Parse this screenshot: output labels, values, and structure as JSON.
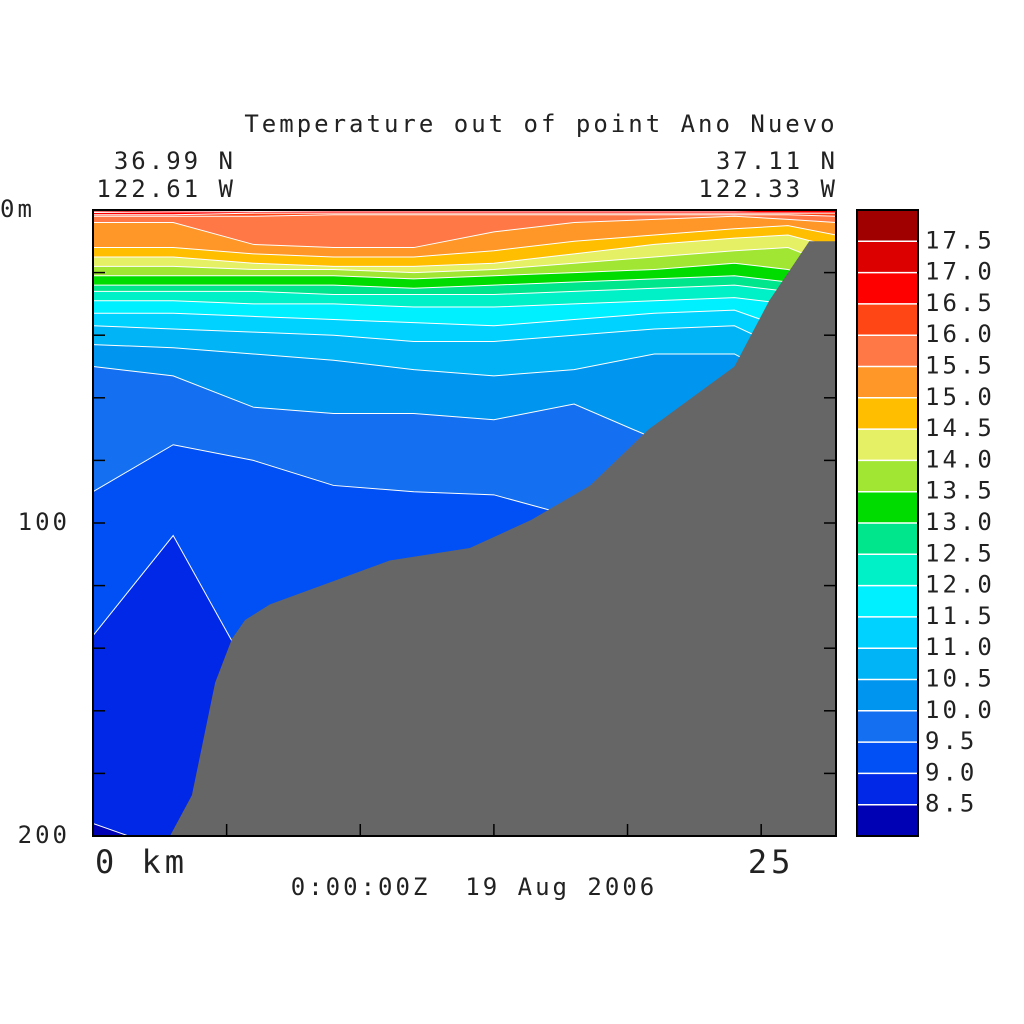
{
  "chart_data": {
    "type": "contour",
    "title": "Temperature out of point Ano Nuevo",
    "left_lat": "36.99 N",
    "left_lon": "122.61 W",
    "right_lat": "37.11 N",
    "right_lon": "122.33 W",
    "footer": "0:00:00Z  19 Aug 2006",
    "xlim": [
      0,
      27.8
    ],
    "xticks": [
      {
        "value": 0,
        "label": "0 km"
      },
      {
        "value": 5,
        "label": null
      },
      {
        "value": 10,
        "label": null
      },
      {
        "value": 15,
        "label": null
      },
      {
        "value": 20,
        "label": null
      },
      25
    ],
    "ylim": [
      0,
      200
    ],
    "yticks": [
      {
        "value": 0,
        "label": "0m"
      },
      {
        "value": 20,
        "label": null
      },
      {
        "value": 40,
        "label": null
      },
      {
        "value": 60,
        "label": null
      },
      {
        "value": 80,
        "label": null
      },
      100,
      {
        "value": 120,
        "label": null
      },
      {
        "value": 140,
        "label": null
      },
      {
        "value": 160,
        "label": null
      },
      {
        "value": 180,
        "label": null
      },
      200
    ],
    "x": [
      0,
      3,
      6,
      9,
      12,
      15,
      18,
      21,
      24,
      26,
      27.8
    ],
    "isotherms": [
      {
        "level": 8.5,
        "depth": [
          196,
          205,
          210,
          210,
          210,
          210,
          210,
          210,
          210,
          210,
          210
        ]
      },
      {
        "level": 9,
        "depth": [
          136,
          104,
          150,
          160,
          165,
          170,
          175,
          180,
          185,
          190,
          190
        ]
      },
      {
        "level": 9.5,
        "depth": [
          90,
          75,
          80,
          88,
          90,
          91,
          98,
          105,
          115,
          120,
          125
        ]
      },
      {
        "level": 10,
        "depth": [
          50,
          53,
          63,
          65,
          65,
          67,
          62,
          73,
          80,
          85,
          90
        ]
      },
      {
        "level": 10.5,
        "depth": [
          43,
          44,
          46,
          48,
          51,
          53,
          51,
          46,
          46,
          55,
          60
        ]
      },
      {
        "level": 11,
        "depth": [
          37,
          38,
          39,
          40,
          42,
          42,
          40,
          38,
          37,
          45,
          50
        ]
      },
      {
        "level": 11.5,
        "depth": [
          33,
          33,
          34,
          35,
          36,
          37,
          35,
          33,
          32,
          38,
          45
        ]
      },
      {
        "level": 12,
        "depth": [
          29,
          29,
          30,
          30,
          31,
          31,
          30,
          29,
          28,
          30,
          40
        ]
      },
      {
        "level": 12.5,
        "depth": [
          26,
          26,
          26,
          27,
          27,
          27,
          26,
          25,
          24,
          26,
          35
        ]
      },
      {
        "level": 13,
        "depth": [
          24,
          24,
          24,
          24,
          25,
          24,
          23,
          22,
          21,
          23,
          30
        ]
      },
      {
        "level": 13.5,
        "depth": [
          21,
          21,
          21,
          21,
          22,
          21,
          20,
          19,
          17,
          19,
          25
        ]
      },
      {
        "level": 14,
        "depth": [
          18,
          18,
          19,
          19,
          20,
          19,
          17,
          15,
          13,
          12,
          18
        ]
      },
      {
        "level": 14.5,
        "depth": [
          15,
          15,
          17,
          18,
          18,
          17,
          14,
          11,
          9,
          8,
          12
        ]
      },
      {
        "level": 15,
        "depth": [
          12,
          12,
          14,
          15,
          15,
          13,
          10,
          8,
          6,
          5,
          8
        ]
      },
      {
        "level": 15.5,
        "depth": [
          4,
          4,
          11,
          12,
          12,
          7,
          4,
          3,
          2,
          3,
          4
        ]
      },
      {
        "level": 16,
        "depth": [
          2,
          2,
          2,
          1.5,
          1.5,
          1.5,
          1.5,
          1.5,
          1.5,
          1.5,
          2
        ]
      },
      {
        "level": 16.5,
        "depth": [
          1.5,
          1.5,
          1,
          1,
          1,
          1,
          1,
          1,
          1,
          1,
          1
        ]
      },
      {
        "level": 17,
        "depth": [
          0.8,
          0.6,
          0.5,
          0.3,
          0.3,
          0.3,
          0.3,
          0.3,
          0.3,
          0,
          0
        ]
      },
      {
        "level": 17.5,
        "depth": [
          0.3,
          0,
          0,
          0,
          0,
          0,
          0,
          0,
          0,
          0,
          0
        ]
      }
    ],
    "bathymetry": {
      "color": "#666666",
      "x": [
        2.88,
        3.7,
        4.57,
        5.2,
        5.69,
        6.62,
        11.1,
        14.1,
        16.4,
        18.6,
        20.8,
        24,
        25.3,
        26.8,
        27.8
      ],
      "depth": [
        200,
        187,
        151,
        137,
        131,
        126,
        112,
        108,
        99,
        88,
        70,
        50,
        29,
        10,
        10
      ]
    },
    "colorbar": {
      "lim": [
        8,
        18
      ],
      "ticks": [
        8.5,
        {
          "value": 9,
          "label": "9.0"
        },
        9.5,
        {
          "value": 10,
          "label": "10.0"
        },
        10.5,
        {
          "value": 11,
          "label": "11.0"
        },
        11.5,
        {
          "value": 12,
          "label": "12.0"
        },
        12.5,
        {
          "value": 13,
          "label": "13.0"
        },
        13.5,
        {
          "value": 14,
          "label": "14.0"
        },
        14.5,
        {
          "value": 15,
          "label": "15.0"
        },
        15.5,
        {
          "value": 16,
          "label": "16.0"
        },
        16.5,
        {
          "value": 17,
          "label": "17.0"
        },
        17.5
      ],
      "colors": [
        "#0000b4",
        "#0028e6",
        "#0050f5",
        "#1470f0",
        "#0096f0",
        "#00b4f5",
        "#00d2ff",
        "#00f0ff",
        "#00f0c8",
        "#00e68c",
        "#00dc00",
        "#a0e632",
        "#e6f064",
        "#ffbe00",
        "#ff9628",
        "#ff7846",
        "#ff4614",
        "#ff0000",
        "#dc0000",
        "#a00000"
      ]
    }
  }
}
